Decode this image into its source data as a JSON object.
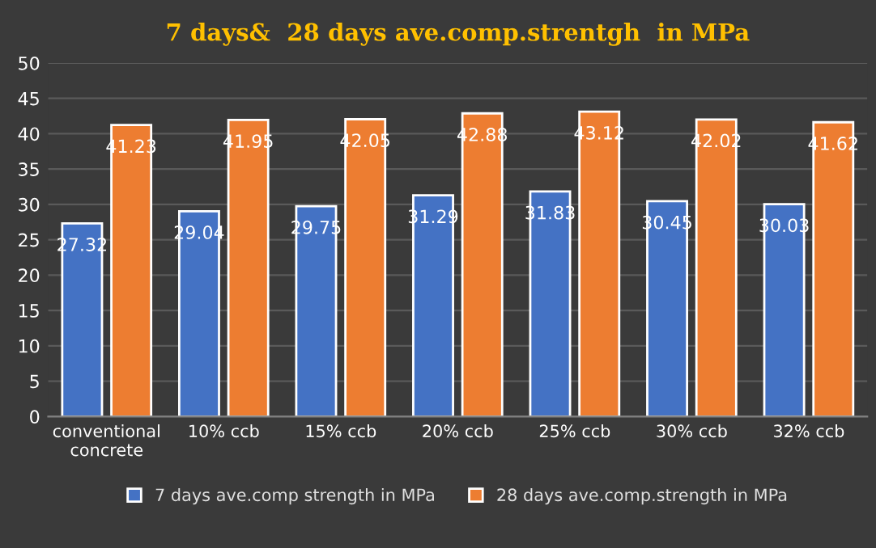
{
  "chart_data": {
    "type": "bar",
    "title": "7 days&  28 days ave.comp.strentgh  in MPa",
    "categories": [
      "conventional\nconcrete",
      "10% ccb",
      "15% ccb",
      "20% ccb",
      "25% ccb",
      "30% ccb",
      "32% ccb"
    ],
    "series": [
      {
        "name": "7 days ave.comp strength in MPa",
        "color": "#4472c4",
        "values": [
          27.32,
          29.04,
          29.75,
          31.29,
          31.83,
          30.45,
          30.03
        ]
      },
      {
        "name": "28 days ave.comp.strength in MPa",
        "color": "#ed7d31",
        "values": [
          41.23,
          41.95,
          42.05,
          42.88,
          43.12,
          42.02,
          41.62
        ]
      }
    ],
    "ylim": [
      0,
      50
    ],
    "yticks": [
      0,
      5,
      10,
      15,
      20,
      25,
      30,
      35,
      40,
      45,
      50
    ],
    "grid": "y",
    "legend": "bottom",
    "data_labels": true
  }
}
